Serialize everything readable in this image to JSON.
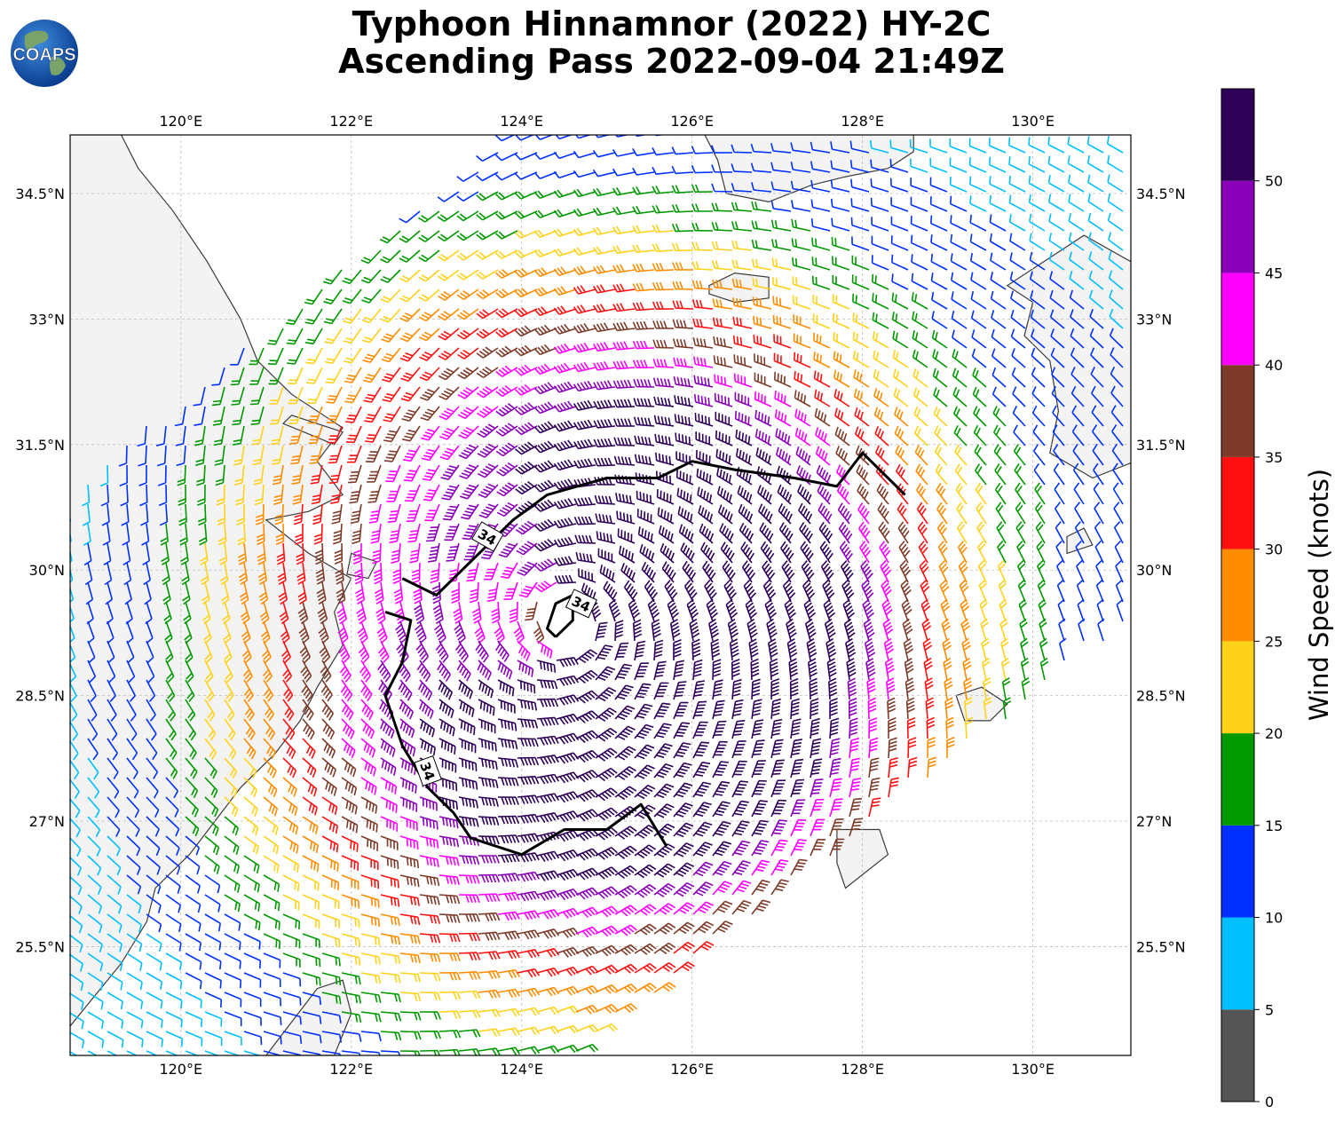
{
  "header": {
    "title_line1": "Typhoon Hinnamnor (2022) HY-2C",
    "title_line2": "Ascending Pass 2022-09-04 21:49Z",
    "logo_text": "COAPS"
  },
  "map": {
    "lon_ticks": [
      "120°E",
      "122°E",
      "124°E",
      "126°E",
      "128°E",
      "130°E"
    ],
    "lon_values": [
      120,
      122,
      124,
      126,
      128,
      130
    ],
    "lat_ticks": [
      "34.5°N",
      "33°N",
      "31.5°N",
      "30°N",
      "28.5°N",
      "27°N",
      "25.5°N"
    ],
    "lat_values": [
      34.5,
      33,
      31.5,
      30,
      28.5,
      27,
      25.5
    ],
    "extent": {
      "lon_min": 118.7,
      "lon_max": 131.15,
      "lat_min": 24.2,
      "lat_max": 35.2
    },
    "storm_center": {
      "lon": 124.5,
      "lat": 29.4
    },
    "contour_label": "34",
    "contour_labels": [
      "34",
      "34",
      "34"
    ],
    "colors": {
      "land": "#f3f3f3",
      "coast": "#3a3a3a",
      "grid": "#bdbdbd",
      "contour": "#000000"
    }
  },
  "colorbar": {
    "label": "Wind Speed (knots)",
    "ticks": [
      "0",
      "5",
      "10",
      "15",
      "20",
      "25",
      "30",
      "35",
      "40",
      "45",
      "50"
    ],
    "tick_values": [
      0,
      5,
      10,
      15,
      20,
      25,
      30,
      35,
      40,
      45,
      50
    ],
    "max": 55,
    "bins": [
      {
        "from": 0,
        "to": 5,
        "color": "#555555"
      },
      {
        "from": 5,
        "to": 10,
        "color": "#00bfff"
      },
      {
        "from": 10,
        "to": 15,
        "color": "#0030ff"
      },
      {
        "from": 15,
        "to": 20,
        "color": "#009900"
      },
      {
        "from": 20,
        "to": 25,
        "color": "#ffd21a"
      },
      {
        "from": 25,
        "to": 30,
        "color": "#ff8c00"
      },
      {
        "from": 30,
        "to": 35,
        "color": "#ff1010"
      },
      {
        "from": 35,
        "to": 40,
        "color": "#7d3a28"
      },
      {
        "from": 40,
        "to": 45,
        "color": "#ff00ff"
      },
      {
        "from": 45,
        "to": 50,
        "color": "#8a00b8"
      },
      {
        "from": 50,
        "to": 55,
        "color": "#2e0058"
      }
    ]
  }
}
